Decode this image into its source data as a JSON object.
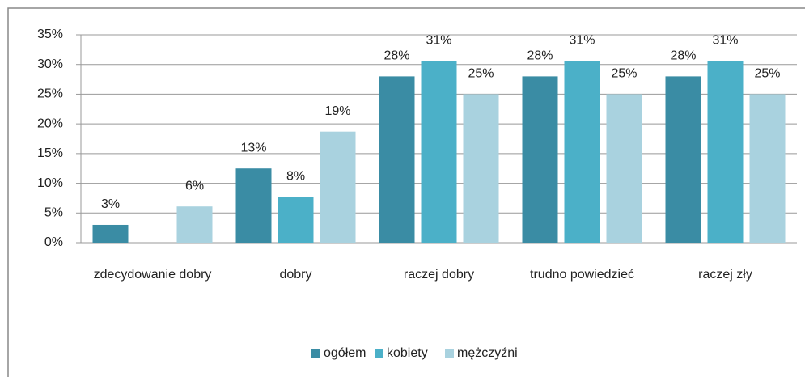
{
  "chart_data": {
    "type": "bar",
    "categories": [
      "zdecydowanie dobry",
      "dobry",
      "raczej dobry",
      "trudno powiedzieć",
      "raczej zły"
    ],
    "series": [
      {
        "name": "ogółem",
        "color": "#3a8ca4",
        "values": [
          3,
          12.5,
          28,
          28,
          28
        ],
        "value_labels": [
          "3%",
          "13%",
          "28%",
          "28%",
          "28%"
        ]
      },
      {
        "name": "kobiety",
        "color": "#4bb0c8",
        "values": [
          null,
          7.7,
          30.6,
          30.6,
          30.6
        ],
        "value_labels": [
          null,
          "8%",
          "31%",
          "31%",
          "31%"
        ]
      },
      {
        "name": "mężczyźni",
        "color": "#a9d2df",
        "values": [
          6.1,
          18.7,
          25,
          25,
          25
        ],
        "value_labels": [
          "6%",
          "19%",
          "25%",
          "25%",
          "25%"
        ]
      }
    ],
    "ylim": [
      0,
      35
    ],
    "yticks": [
      {
        "value": 0,
        "label": "0%"
      },
      {
        "value": 5,
        "label": "5%"
      },
      {
        "value": 10,
        "label": "10%"
      },
      {
        "value": 15,
        "label": "15%"
      },
      {
        "value": 20,
        "label": "20%"
      },
      {
        "value": 25,
        "label": "25%"
      },
      {
        "value": 30,
        "label": "30%"
      },
      {
        "value": 35,
        "label": "35%"
      }
    ],
    "grid": true,
    "legend": "bottom"
  }
}
